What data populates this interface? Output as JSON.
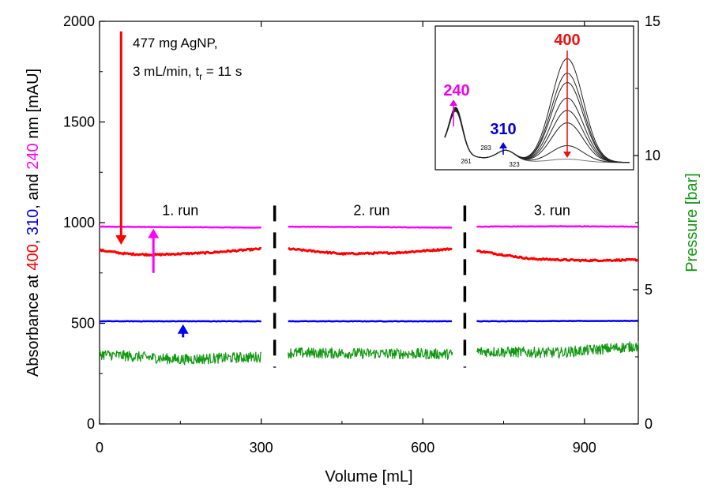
{
  "chart_data": {
    "type": "line",
    "title": "",
    "xlabel": "Volume [mL]",
    "xlim": [
      0,
      1000
    ],
    "xticks": [
      0,
      300,
      600,
      900
    ],
    "xtick_labels": [
      "0",
      "300",
      "600",
      "900"
    ],
    "ylabel_left": {
      "parts": [
        {
          "text": "Absorbance at ",
          "color": "#000000"
        },
        {
          "text": "400",
          "color": "#ff0000"
        },
        {
          "text": ", ",
          "color": "#000000"
        },
        {
          "text": "310",
          "color": "#0000ff"
        },
        {
          "text": ", and ",
          "color": "#000000"
        },
        {
          "text": "240",
          "color": "#ff00ff"
        },
        {
          "text": " nm [mAU]",
          "color": "#000000"
        }
      ]
    },
    "ylim_left": [
      0,
      2000
    ],
    "yticks_left": [
      0,
      500,
      1000,
      1500,
      2000
    ],
    "ytick_labels_left": [
      "0",
      "500",
      "1000",
      "1500",
      "2000"
    ],
    "ylabel_right": "Pressure [bar]",
    "ylabel_right_color": "#119911",
    "ylim_right": [
      0,
      15
    ],
    "yticks_right": [
      0,
      5,
      10,
      15
    ],
    "ytick_labels_right": [
      "0",
      "5",
      "10",
      "15"
    ],
    "annotation": {
      "line1": "477 mg AgNP,",
      "line2_main": "3 mL/min, t",
      "line2_sub": "r",
      "line2_end": " = 11 s"
    },
    "run_labels": [
      {
        "label": "1. run",
        "x": 150,
        "y": 1060
      },
      {
        "label": "2. run",
        "x": 505,
        "y": 1060
      },
      {
        "label": "3. run",
        "x": 840,
        "y": 1060
      }
    ],
    "run_separators_x": [
      325,
      678
    ],
    "segments": [
      [
        0,
        300
      ],
      [
        350,
        655
      ],
      [
        700,
        1000
      ]
    ],
    "series": [
      {
        "name": "240 nm",
        "axis": "left",
        "color": "#ff00ff",
        "noise": 1,
        "points": [
          [
            0,
            980
          ],
          [
            300,
            975
          ],
          [
            350,
            980
          ],
          [
            500,
            978
          ],
          [
            655,
            975
          ],
          [
            700,
            980
          ],
          [
            850,
            982
          ],
          [
            1000,
            980
          ]
        ]
      },
      {
        "name": "400 nm",
        "axis": "left",
        "color": "#ff0000",
        "noise": 4,
        "points": [
          [
            0,
            863
          ],
          [
            50,
            845
          ],
          [
            100,
            840
          ],
          [
            200,
            850
          ],
          [
            300,
            870
          ],
          [
            350,
            870
          ],
          [
            450,
            845
          ],
          [
            550,
            850
          ],
          [
            655,
            870
          ],
          [
            700,
            860
          ],
          [
            800,
            820
          ],
          [
            900,
            812
          ],
          [
            1000,
            815
          ]
        ]
      },
      {
        "name": "310 nm",
        "axis": "left",
        "color": "#0000ff",
        "noise": 1,
        "points": [
          [
            0,
            510
          ],
          [
            300,
            510
          ],
          [
            350,
            510
          ],
          [
            655,
            510
          ],
          [
            700,
            510
          ],
          [
            1000,
            512
          ]
        ]
      },
      {
        "name": "Pressure",
        "axis": "right",
        "color": "#119911",
        "noise": 0.2,
        "points": [
          [
            0,
            2.6
          ],
          [
            150,
            2.4
          ],
          [
            300,
            2.5
          ],
          [
            350,
            2.65
          ],
          [
            655,
            2.6
          ],
          [
            700,
            2.7
          ],
          [
            850,
            2.65
          ],
          [
            1000,
            2.9
          ]
        ]
      }
    ],
    "arrows": [
      {
        "name": "arrow-400nm-down",
        "color": "#ff0000",
        "x": 40,
        "y_from": 1950,
        "y_to": 890
      },
      {
        "name": "arrow-240nm-up",
        "color": "#ff00ff",
        "x": 100,
        "y_from": 750,
        "y_to": 970
      },
      {
        "name": "arrow-310nm-up",
        "color": "#0000ff",
        "x": 155,
        "y_from": 430,
        "y_to": 495
      }
    ],
    "inset": {
      "label_400": "400",
      "label_400_color": "#ee1111",
      "label_240": "240",
      "label_240_color": "#ee00ee",
      "label_310": "310",
      "label_310_color": "#0000dd",
      "labels_small": [
        "261",
        "283",
        "323"
      ],
      "spectra_peak_heights": [
        0.03,
        0.16,
        0.38,
        0.5,
        0.62,
        0.77,
        0.86,
        1.0
      ]
    }
  }
}
